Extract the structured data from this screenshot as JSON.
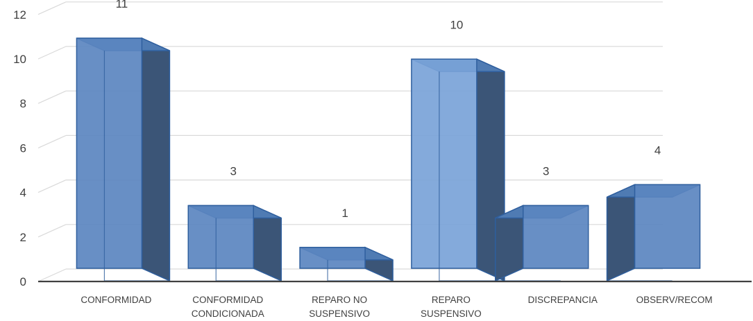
{
  "chart_data": {
    "type": "bar",
    "style": "3d-column",
    "categories": [
      [
        "CONFORMIDAD"
      ],
      [
        "CONFORMIDAD",
        "CONDICIONADA"
      ],
      [
        "REPARO NO",
        "SUSPENSIVO"
      ],
      [
        "REPARO",
        "SUSPENSIVO"
      ],
      [
        "DISCREPANCIA"
      ],
      [
        "OBSERV/RECOM"
      ]
    ],
    "values": [
      11,
      3,
      1,
      10,
      3,
      4
    ],
    "data_labels": [
      "11",
      "3",
      "1",
      "10",
      "3",
      "4"
    ],
    "y_ticks": [
      "0",
      "2",
      "4",
      "6",
      "8",
      "10",
      "12"
    ],
    "ylim": [
      0,
      12
    ],
    "grid": true,
    "colors": {
      "front": "#5b86c0",
      "front_highlight": "#7aa3d8",
      "side_dark": "#3b5577",
      "top": "#4f7bb3",
      "edge": "#2f5f9e",
      "grid": "#d9d9d9",
      "axis": "#404040"
    }
  }
}
